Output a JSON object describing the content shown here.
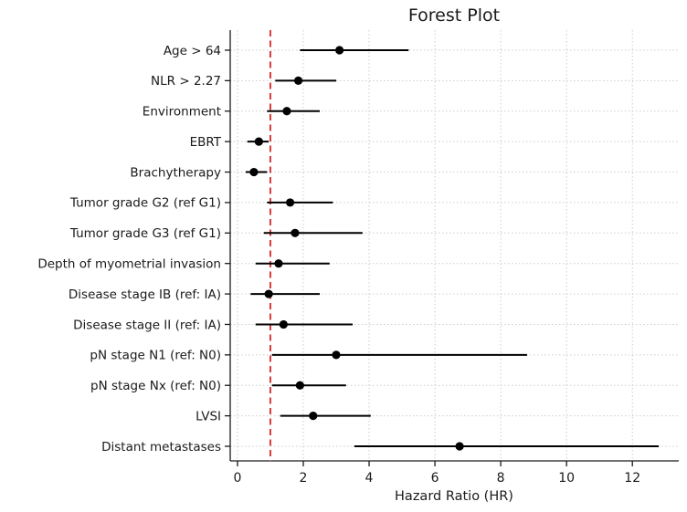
{
  "chart_data": {
    "type": "scatter",
    "subtype": "forest-plot",
    "title": "Forest Plot",
    "xlabel": "Hazard Ratio (HR)",
    "ylabel": "",
    "grid": true,
    "xlim": [
      -0.22,
      13.41
    ],
    "xticks": [
      0,
      2,
      4,
      6,
      8,
      10,
      12
    ],
    "reference_line": {
      "x": 1,
      "style": "dashed"
    },
    "rows": [
      {
        "label": "Age > 64",
        "hr": 3.1,
        "lo": 1.9,
        "hi": 5.2
      },
      {
        "label": "NLR > 2.27",
        "hr": 1.85,
        "lo": 1.15,
        "hi": 3.0
      },
      {
        "label": "Environment",
        "hr": 1.5,
        "lo": 0.9,
        "hi": 2.5
      },
      {
        "label": "EBRT",
        "hr": 0.65,
        "lo": 0.3,
        "hi": 0.95
      },
      {
        "label": "Brachytherapy",
        "hr": 0.5,
        "lo": 0.25,
        "hi": 0.9
      },
      {
        "label": "Tumor grade G2 (ref G1)",
        "hr": 1.6,
        "lo": 0.9,
        "hi": 2.9
      },
      {
        "label": "Tumor grade G3 (ref G1)",
        "hr": 1.75,
        "lo": 0.8,
        "hi": 3.8
      },
      {
        "label": "Depth of myometrial invasion",
        "hr": 1.25,
        "lo": 0.55,
        "hi": 2.8
      },
      {
        "label": "Disease stage IB (ref: IA)",
        "hr": 0.95,
        "lo": 0.4,
        "hi": 2.5
      },
      {
        "label": "Disease stage II (ref: IA)",
        "hr": 1.4,
        "lo": 0.55,
        "hi": 3.5
      },
      {
        "label": "pN stage N1 (ref: N0)",
        "hr": 3.0,
        "lo": 1.05,
        "hi": 8.8
      },
      {
        "label": "pN stage Nx (ref: N0)",
        "hr": 1.9,
        "lo": 1.05,
        "hi": 3.3
      },
      {
        "label": "LVSI",
        "hr": 2.3,
        "lo": 1.3,
        "hi": 4.05
      },
      {
        "label": "Distant metastases",
        "hr": 6.75,
        "lo": 3.55,
        "hi": 12.8
      }
    ],
    "colors": {
      "marker": "#000000",
      "ci_line": "#000000",
      "reference_line": "#d62728",
      "grid": "#cccccc",
      "axis": "#1a1a1a",
      "text": "#1a1a1a"
    }
  }
}
